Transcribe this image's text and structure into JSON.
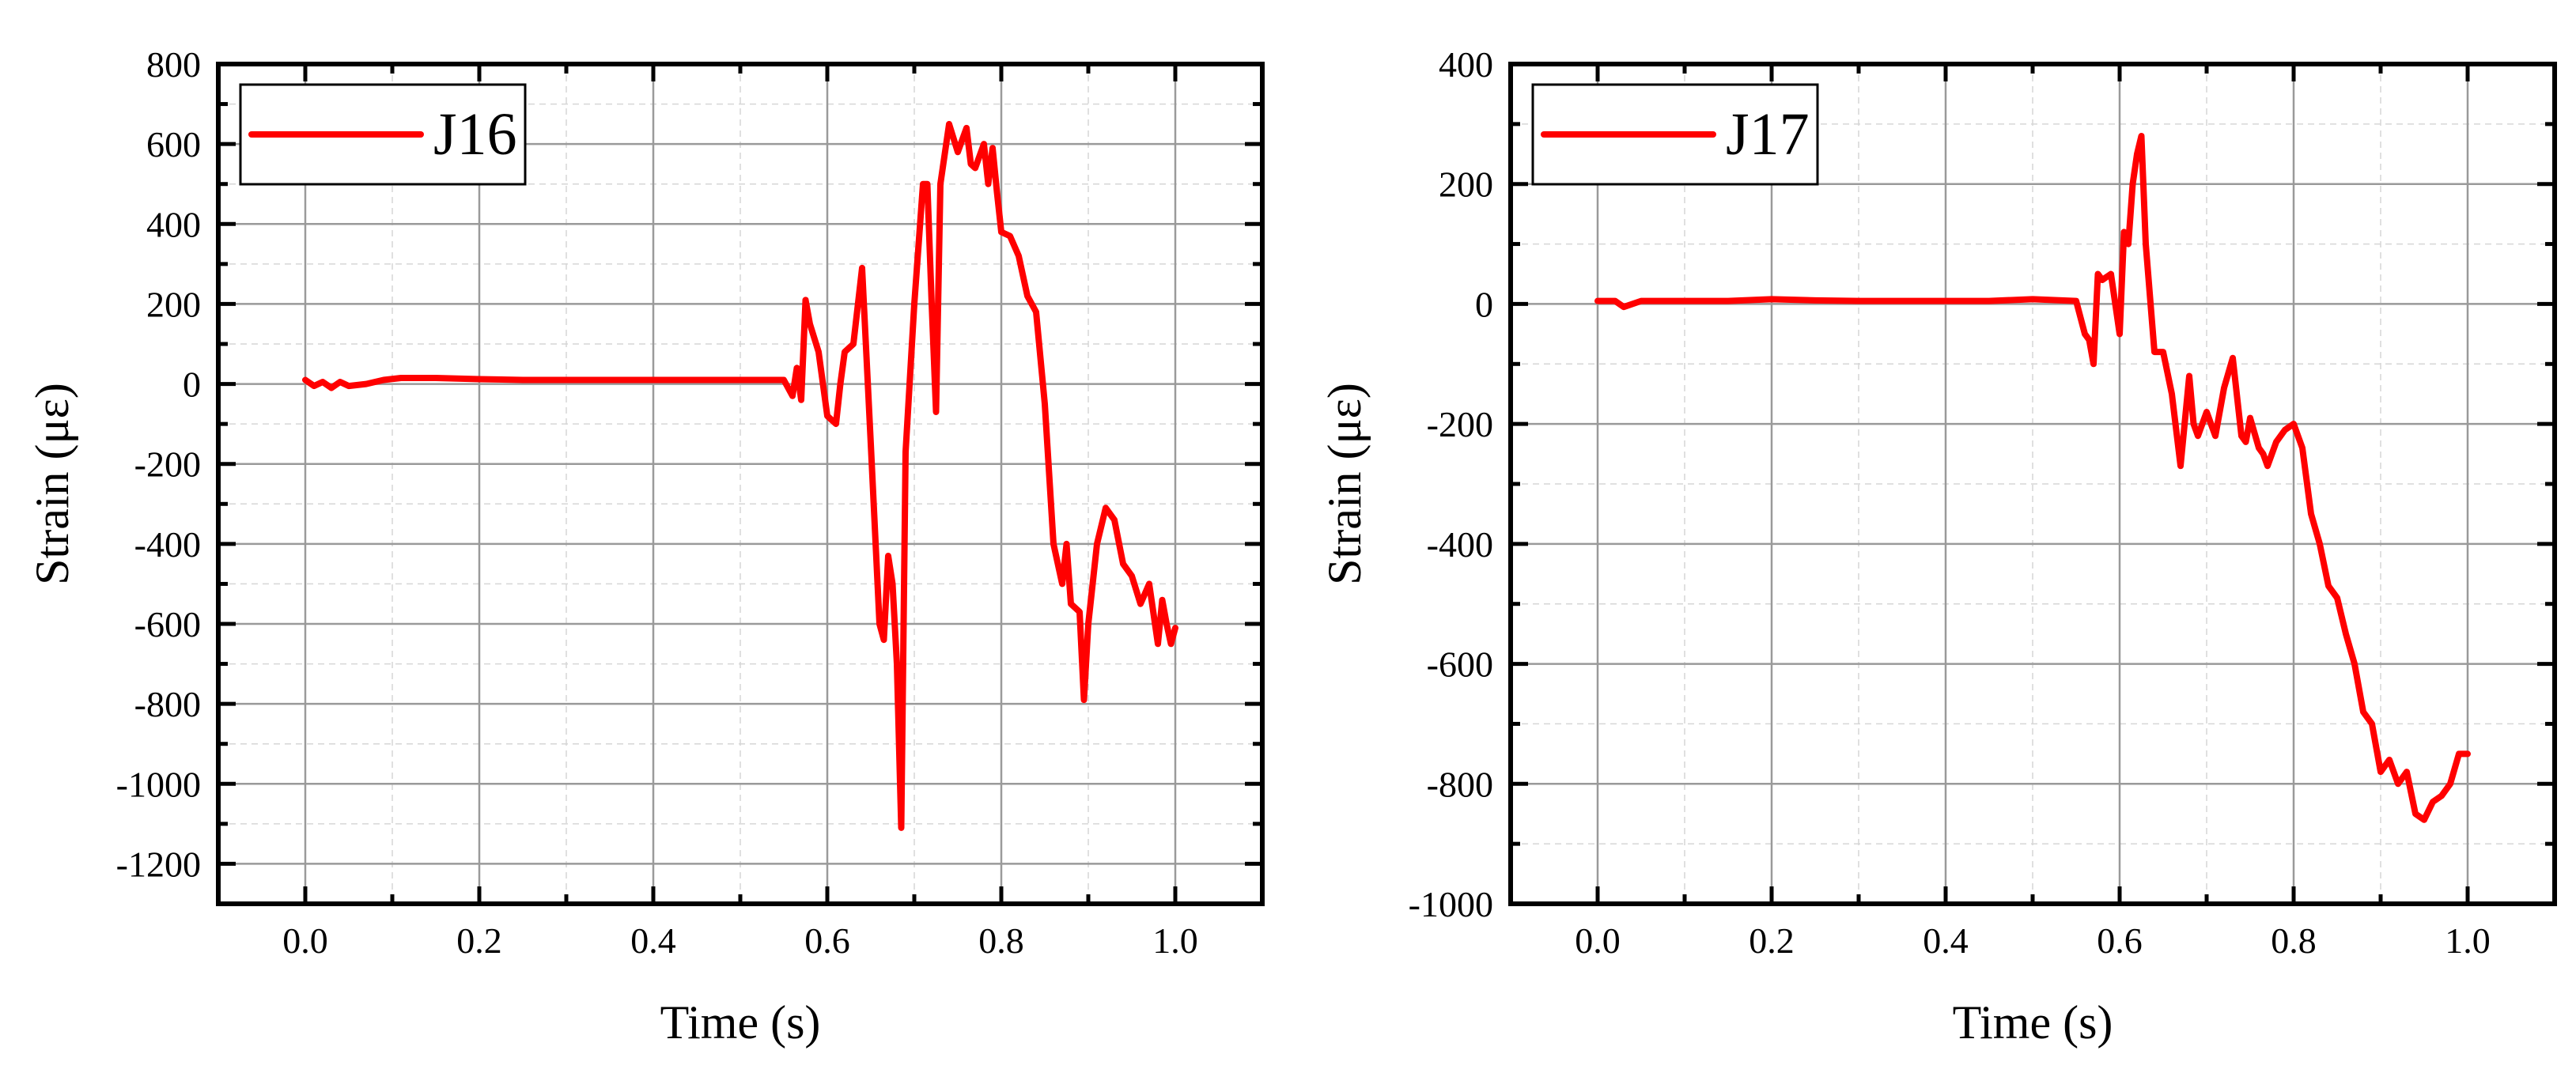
{
  "chart_data": [
    {
      "type": "line",
      "xlabel": "Time (s)",
      "ylabel": "Strain (με)",
      "xlim": [
        -0.1,
        1.1
      ],
      "ylim": [
        -1300,
        800
      ],
      "xticks": [
        0.0,
        0.2,
        0.4,
        0.6,
        0.8,
        1.0
      ],
      "xtick_labels": [
        "0.0",
        "0.2",
        "0.4",
        "0.6",
        "0.8",
        "1.0"
      ],
      "yticks": [
        800,
        600,
        400,
        200,
        0,
        -200,
        -400,
        -600,
        -800,
        -1000,
        -1200
      ],
      "ytick_labels": [
        "800",
        "600",
        "400",
        "200",
        "0",
        "-200",
        "-400",
        "-600",
        "-800",
        "-1000",
        "-1200"
      ],
      "grid": true,
      "legend_position": "top-left",
      "color": "#ff0000",
      "series": [
        {
          "name": "J16",
          "x": [
            0.0,
            0.01,
            0.02,
            0.03,
            0.04,
            0.05,
            0.07,
            0.09,
            0.11,
            0.13,
            0.15,
            0.2,
            0.25,
            0.3,
            0.35,
            0.4,
            0.45,
            0.5,
            0.55,
            0.56,
            0.565,
            0.57,
            0.575,
            0.58,
            0.59,
            0.6,
            0.61,
            0.615,
            0.62,
            0.63,
            0.64,
            0.65,
            0.66,
            0.665,
            0.67,
            0.675,
            0.68,
            0.685,
            0.69,
            0.7,
            0.71,
            0.715,
            0.72,
            0.725,
            0.73,
            0.74,
            0.75,
            0.76,
            0.765,
            0.77,
            0.78,
            0.785,
            0.79,
            0.795,
            0.8,
            0.81,
            0.82,
            0.83,
            0.84,
            0.85,
            0.86,
            0.87,
            0.875,
            0.88,
            0.89,
            0.895,
            0.9,
            0.91,
            0.92,
            0.93,
            0.94,
            0.95,
            0.96,
            0.97,
            0.98,
            0.985,
            0.99,
            0.995,
            1.0
          ],
          "y": [
            10,
            -5,
            5,
            -10,
            5,
            -5,
            0,
            10,
            15,
            15,
            15,
            12,
            10,
            10,
            10,
            10,
            10,
            10,
            10,
            -30,
            40,
            -40,
            210,
            150,
            80,
            -80,
            -100,
            0,
            80,
            100,
            290,
            -150,
            -600,
            -640,
            -430,
            -500,
            -700,
            -1110,
            -170,
            200,
            500,
            500,
            200,
            -70,
            500,
            650,
            580,
            640,
            550,
            540,
            600,
            500,
            590,
            480,
            380,
            370,
            320,
            220,
            180,
            -50,
            -400,
            -500,
            -400,
            -550,
            -570,
            -790,
            -600,
            -400,
            -310,
            -340,
            -450,
            -480,
            -550,
            -500,
            -650,
            -540,
            -600,
            -650,
            -610
          ]
        }
      ]
    },
    {
      "type": "line",
      "xlabel": "Time (s)",
      "ylabel": "Strain (με)",
      "xlim": [
        -0.1,
        1.1
      ],
      "ylim": [
        -1000,
        400
      ],
      "xticks": [
        0.0,
        0.2,
        0.4,
        0.6,
        0.8,
        1.0
      ],
      "xtick_labels": [
        "0.0",
        "0.2",
        "0.4",
        "0.6",
        "0.8",
        "1.0"
      ],
      "yticks": [
        400,
        200,
        0,
        -200,
        -400,
        -600,
        -800,
        -1000
      ],
      "ytick_labels": [
        "400",
        "200",
        "0",
        "-200",
        "-400",
        "-600",
        "-800",
        "-1000"
      ],
      "grid": true,
      "legend_position": "top-left",
      "color": "#ff0000",
      "series": [
        {
          "name": "J17",
          "x": [
            0.0,
            0.02,
            0.03,
            0.05,
            0.1,
            0.15,
            0.2,
            0.25,
            0.3,
            0.35,
            0.4,
            0.45,
            0.5,
            0.55,
            0.56,
            0.565,
            0.57,
            0.575,
            0.58,
            0.59,
            0.6,
            0.605,
            0.61,
            0.615,
            0.62,
            0.625,
            0.63,
            0.64,
            0.65,
            0.66,
            0.67,
            0.68,
            0.685,
            0.69,
            0.7,
            0.71,
            0.72,
            0.73,
            0.74,
            0.745,
            0.75,
            0.76,
            0.765,
            0.77,
            0.78,
            0.79,
            0.8,
            0.81,
            0.82,
            0.83,
            0.84,
            0.85,
            0.86,
            0.87,
            0.88,
            0.89,
            0.9,
            0.91,
            0.92,
            0.93,
            0.94,
            0.95,
            0.96,
            0.97,
            0.98,
            0.99,
            1.0
          ],
          "y": [
            5,
            5,
            -5,
            5,
            5,
            5,
            8,
            6,
            5,
            5,
            5,
            5,
            8,
            5,
            -50,
            -60,
            -100,
            50,
            40,
            50,
            -50,
            120,
            100,
            200,
            250,
            280,
            100,
            -80,
            -80,
            -150,
            -270,
            -120,
            -200,
            -220,
            -180,
            -220,
            -140,
            -90,
            -220,
            -230,
            -190,
            -240,
            -250,
            -270,
            -230,
            -210,
            -200,
            -240,
            -350,
            -400,
            -470,
            -490,
            -550,
            -600,
            -680,
            -700,
            -780,
            -760,
            -800,
            -780,
            -850,
            -860,
            -830,
            -820,
            -800,
            -750,
            -750
          ]
        }
      ]
    }
  ]
}
